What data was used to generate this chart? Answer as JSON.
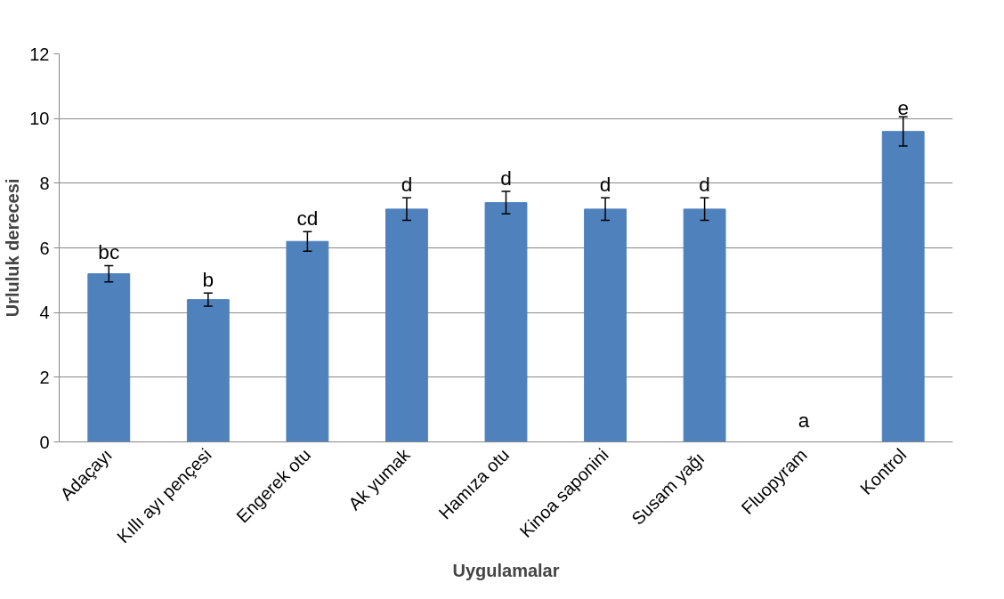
{
  "chart_data": {
    "type": "bar",
    "xlabel": "Uygulamalar",
    "ylabel": "Urluluk derecesi",
    "categories": [
      "Adaçayı",
      "Kıllı ayı pençesi",
      "Engerek otu",
      "Ak yumak",
      "Hamıza otu",
      "Kinoa saponini",
      "Susam  yağı",
      "Fluopyram",
      "Kontrol"
    ],
    "values": [
      5.2,
      4.4,
      6.2,
      7.2,
      7.4,
      7.2,
      7.2,
      0,
      9.6
    ],
    "errors": [
      0.25,
      0.2,
      0.3,
      0.35,
      0.35,
      0.35,
      0.35,
      null,
      0.45
    ],
    "color": "#4f81bd",
    "ylim": [
      0,
      12
    ],
    "yticks": [
      0,
      2,
      4,
      6,
      8,
      10,
      12
    ],
    "grid": "y",
    "annotations": [
      {
        "text": "bc",
        "x": "Adaçayı",
        "y": 5.45
      },
      {
        "text": "b",
        "x": "Kıllı ayı pençesi",
        "y": 4.6
      },
      {
        "text": "cd",
        "x": "Engerek otu",
        "y": 6.5
      },
      {
        "text": "d",
        "x": "Ak yumak",
        "y": 7.55
      },
      {
        "text": "d",
        "x": "Hamıza otu",
        "y": 7.75
      },
      {
        "text": "d",
        "x": "Kinoa saponini",
        "y": 7.55
      },
      {
        "text": "d",
        "x": "Susam  yağı",
        "y": 7.55
      },
      {
        "text": "a",
        "x": "Fluopyram",
        "y": 0
      },
      {
        "text": "e",
        "x": "Kontrol",
        "y": 10.05
      }
    ]
  }
}
